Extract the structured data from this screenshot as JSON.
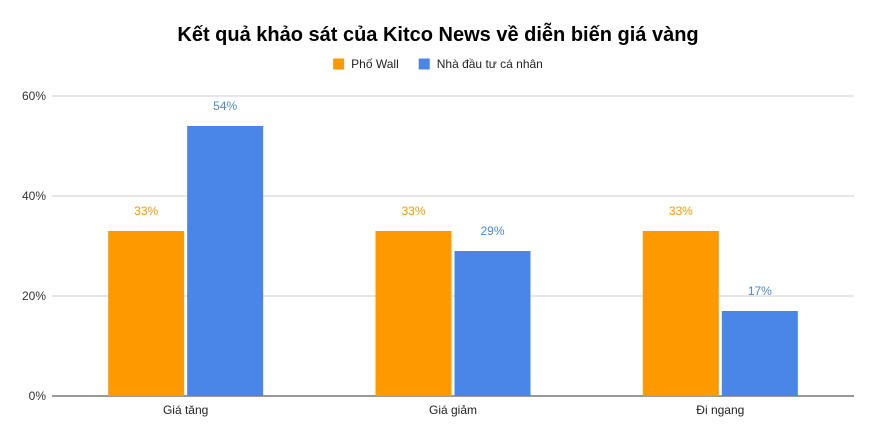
{
  "chart_data": {
    "type": "bar",
    "title": "Kết quả khảo sát của Kitco News về diễn biến giá vàng",
    "categories": [
      "Giá tăng",
      "Giá giảm",
      "Đi ngang"
    ],
    "series": [
      {
        "name": "Phố Wall",
        "color": "#ff9900",
        "values": [
          33,
          33,
          33
        ],
        "labels": [
          "33%",
          "33%",
          "33%"
        ]
      },
      {
        "name": "Nhà đầu tư cá nhân",
        "color": "#4a86e8",
        "values": [
          54,
          29,
          17
        ],
        "labels": [
          "54%",
          "29%",
          "17%"
        ]
      }
    ],
    "ylim": [
      0,
      60
    ],
    "yticks": [
      0,
      20,
      40,
      60
    ],
    "ytick_labels": [
      "0%",
      "20%",
      "40%",
      "60%"
    ],
    "grid": true,
    "legend_position": "top-center",
    "xlabel": "",
    "ylabel": ""
  }
}
